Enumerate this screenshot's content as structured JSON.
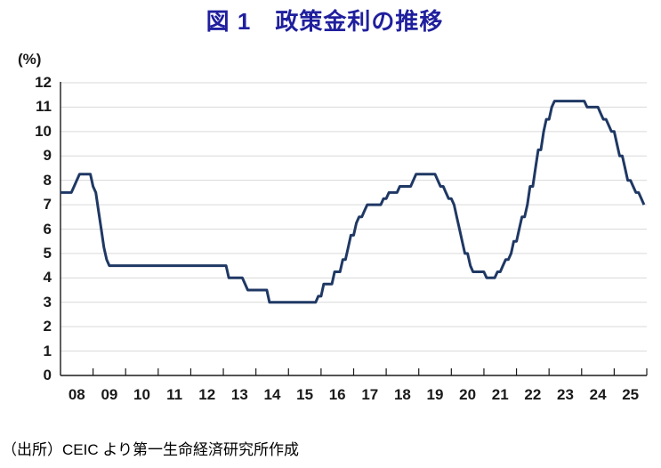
{
  "chart": {
    "title": "図 1　政策金利の推移",
    "unit": "(%)",
    "source": "（出所）CEIC より第一生命経済研究所作成",
    "colors": {
      "title": "#1F1F9E",
      "line": "#1F3864",
      "grid": "#D9D9D9",
      "axis": "#1A1A1A",
      "text": "#1A1A1A"
    }
  },
  "chart_data": {
    "type": "line",
    "title": "図 1　政策金利の推移",
    "ylabel": "(%)",
    "ylim": [
      0,
      12
    ],
    "ytick_step": 1,
    "grid": "horizontal",
    "legend": "none",
    "y_tick_labels": [
      "0",
      "1",
      "2",
      "3",
      "4",
      "5",
      "6",
      "7",
      "8",
      "9",
      "10",
      "11",
      "12"
    ],
    "x_tick_labels": [
      "08",
      "09",
      "10",
      "11",
      "12",
      "13",
      "14",
      "15",
      "16",
      "17",
      "18",
      "19",
      "20",
      "21",
      "22",
      "23",
      "24",
      "25"
    ],
    "x_years_span": 18,
    "series": [
      {
        "name": "政策金利",
        "color": "#1F3864",
        "frequency": "monthly",
        "start": "2008-01",
        "end": "2025-12",
        "values": [
          7.5,
          7.5,
          7.5,
          7.5,
          7.5,
          7.75,
          8,
          8.25,
          8.25,
          8.25,
          8.25,
          8.25,
          7.75,
          7.5,
          6.75,
          6,
          5.25,
          4.75,
          4.5,
          4.5,
          4.5,
          4.5,
          4.5,
          4.5,
          4.5,
          4.5,
          4.5,
          4.5,
          4.5,
          4.5,
          4.5,
          4.5,
          4.5,
          4.5,
          4.5,
          4.5,
          4.5,
          4.5,
          4.5,
          4.5,
          4.5,
          4.5,
          4.5,
          4.5,
          4.5,
          4.5,
          4.5,
          4.5,
          4.5,
          4.5,
          4.5,
          4.5,
          4.5,
          4.5,
          4.5,
          4.5,
          4.5,
          4.5,
          4.5,
          4.5,
          4.5,
          4.5,
          4,
          4,
          4,
          4,
          4,
          4,
          3.75,
          3.5,
          3.5,
          3.5,
          3.5,
          3.5,
          3.5,
          3.5,
          3.5,
          3,
          3,
          3,
          3,
          3,
          3,
          3,
          3,
          3,
          3,
          3,
          3,
          3,
          3,
          3,
          3,
          3,
          3,
          3.25,
          3.25,
          3.75,
          3.75,
          3.75,
          3.75,
          4.25,
          4.25,
          4.25,
          4.75,
          4.75,
          5.25,
          5.75,
          5.75,
          6.25,
          6.5,
          6.5,
          6.75,
          7,
          7,
          7,
          7,
          7,
          7,
          7.25,
          7.25,
          7.5,
          7.5,
          7.5,
          7.5,
          7.75,
          7.75,
          7.75,
          7.75,
          7.75,
          8,
          8.25,
          8.25,
          8.25,
          8.25,
          8.25,
          8.25,
          8.25,
          8.25,
          8,
          7.75,
          7.75,
          7.5,
          7.25,
          7.25,
          7,
          6.5,
          6,
          5.5,
          5,
          5,
          4.5,
          4.25,
          4.25,
          4.25,
          4.25,
          4.25,
          4,
          4,
          4,
          4,
          4.25,
          4.25,
          4.5,
          4.75,
          4.75,
          5,
          5.5,
          5.5,
          6,
          6.5,
          6.5,
          7,
          7.75,
          7.75,
          8.5,
          9.25,
          9.25,
          10,
          10.5,
          10.5,
          11,
          11.25,
          11.25,
          11.25,
          11.25,
          11.25,
          11.25,
          11.25,
          11.25,
          11.25,
          11.25,
          11.25,
          11.25,
          11,
          11,
          11,
          11,
          11,
          10.75,
          10.5,
          10.5,
          10.25,
          10,
          10,
          9.5,
          9,
          9,
          8.5,
          8,
          8,
          7.75,
          7.5,
          7.5,
          7.25,
          7
        ]
      }
    ],
    "source": "（出所）CEIC より第一生命経済研究所作成"
  }
}
